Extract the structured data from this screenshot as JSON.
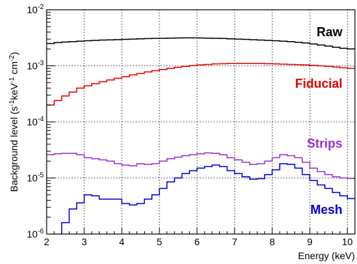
{
  "chart_data": {
    "type": "line",
    "step": true,
    "xlabel": "Energy (keV)",
    "ylabel_parts": {
      "lead": "Background level (s",
      "exp1": "-1",
      "mid": "keV",
      "exp2": "-1",
      "tail": " cm",
      "exp3": "-2",
      "end": ")"
    },
    "xlim": [
      2,
      10.2
    ],
    "ylim": [
      1e-06,
      0.01
    ],
    "yscale": "log",
    "grid": true,
    "x_ticks": [
      "2",
      "3",
      "4",
      "5",
      "6",
      "7",
      "8",
      "9",
      "10"
    ],
    "y_ticks": [
      {
        "base": "10",
        "exp": "-6"
      },
      {
        "base": "10",
        "exp": "-5"
      },
      {
        "base": "10",
        "exp": "-4"
      },
      {
        "base": "10",
        "exp": "-3"
      },
      {
        "base": "10",
        "exp": "-2"
      }
    ],
    "bin_edges": [
      2.0,
      2.2,
      2.4,
      2.6,
      2.8,
      3.0,
      3.2,
      3.4,
      3.6,
      3.8,
      4.0,
      4.2,
      4.4,
      4.6,
      4.8,
      5.0,
      5.2,
      5.4,
      5.6,
      5.8,
      6.0,
      6.2,
      6.4,
      6.6,
      6.8,
      7.0,
      7.2,
      7.4,
      7.6,
      7.8,
      8.0,
      8.2,
      8.4,
      8.6,
      8.8,
      9.0,
      9.2,
      9.4,
      9.6,
      9.8,
      10.0,
      10.2
    ],
    "series": [
      {
        "name": "Raw",
        "color": "#000000",
        "values": [
          0.0025,
          0.0026,
          0.00265,
          0.0027,
          0.00275,
          0.0028,
          0.00284,
          0.00288,
          0.0029,
          0.00293,
          0.00296,
          0.003,
          0.00303,
          0.00306,
          0.00308,
          0.0031,
          0.00312,
          0.00314,
          0.00315,
          0.00315,
          0.00314,
          0.00312,
          0.0031,
          0.00307,
          0.00303,
          0.003,
          0.00296,
          0.00292,
          0.00288,
          0.00284,
          0.0028,
          0.00275,
          0.0027,
          0.00263,
          0.00255,
          0.00245,
          0.00235,
          0.00225,
          0.00215,
          0.00205,
          0.002
        ]
      },
      {
        "name": "Fiducial",
        "color": "#e00000",
        "values": [
          0.0002,
          0.00024,
          0.00029,
          0.00034,
          0.0004,
          0.00044,
          0.00048,
          0.00052,
          0.00056,
          0.0006,
          0.00064,
          0.00069,
          0.00073,
          0.00078,
          0.00082,
          0.00086,
          0.0009,
          0.00094,
          0.00098,
          0.00101,
          0.00104,
          0.00106,
          0.00108,
          0.00109,
          0.0011,
          0.0011,
          0.0011,
          0.0011,
          0.0011,
          0.00109,
          0.00108,
          0.00107,
          0.00106,
          0.00105,
          0.00104,
          0.00102,
          0.001,
          0.00098,
          0.00095,
          0.00092,
          0.0009
        ]
      },
      {
        "name": "Strips",
        "color": "#9b30d0",
        "values": [
          2.6e-05,
          2.7e-05,
          2.75e-05,
          2.75e-05,
          2.6e-05,
          2.3e-05,
          2.2e-05,
          2.1e-05,
          2e-05,
          1.8e-05,
          1.7e-05,
          1.65e-05,
          1.8e-05,
          1.75e-05,
          1.8e-05,
          2e-05,
          2.2e-05,
          2.35e-05,
          2.5e-05,
          2.6e-05,
          2.7e-05,
          2.8e-05,
          2.75e-05,
          2.6e-05,
          2.3e-05,
          2.1e-05,
          1.9e-05,
          1.75e-05,
          1.8e-05,
          2e-05,
          2.3e-05,
          2.6e-05,
          2.5e-05,
          2.3e-05,
          1.9e-05,
          1.5e-05,
          1.3e-05,
          1.15e-05,
          1.05e-05,
          1e-05,
          9.8e-06
        ]
      },
      {
        "name": "Mesh",
        "color": "#0000cc",
        "values": [
          5e-07,
          9e-07,
          1.6e-06,
          2.8e-06,
          3.6e-06,
          5e-06,
          4.8e-06,
          4.2e-06,
          4.2e-06,
          4.2e-06,
          3.5e-06,
          3.3e-06,
          3.5e-06,
          4.2e-06,
          5e-06,
          6.5e-06,
          8.5e-06,
          1e-05,
          1.2e-05,
          1.35e-05,
          1.5e-05,
          1.6e-05,
          1.7e-05,
          1.6e-05,
          1.35e-05,
          1.2e-05,
          1.05e-05,
          9.5e-06,
          9.7e-06,
          1.15e-05,
          1.4e-05,
          1.8e-05,
          1.75e-05,
          1.5e-05,
          1.15e-05,
          9e-06,
          7.5e-06,
          6.5e-06,
          5.5e-06,
          4.8e-06,
          4.3e-06
        ]
      }
    ]
  }
}
